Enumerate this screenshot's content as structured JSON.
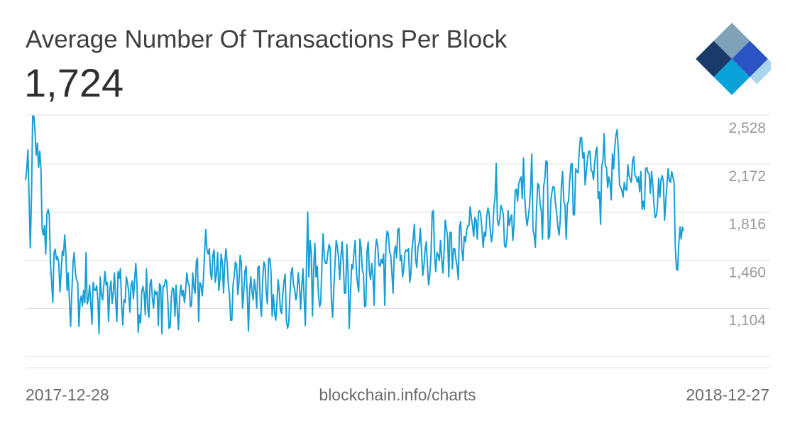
{
  "header": {
    "title": "Average Number Of Transactions Per Block",
    "current_value": "1,724"
  },
  "footer": {
    "start_date": "2017-12-28",
    "source": "blockchain.info/charts",
    "end_date": "2018-12-27"
  },
  "logo": {
    "colors": [
      "#1a3a6b",
      "#7fa2b8",
      "#2a53c4",
      "#08a2d8",
      "#a9d6ec"
    ]
  },
  "colors": {
    "line": "#169fd5",
    "grid": "#e0e0e0",
    "tick_text": "#9a9a9a"
  },
  "chart_data": {
    "type": "line",
    "title": "Average Number Of Transactions Per Block",
    "x_start": "2017-12-28",
    "x_end": "2018-12-27",
    "y_ticks": [
      "2,528",
      "2,172",
      "1,816",
      "1,460",
      "1,104"
    ],
    "ylim": [
      748,
      2618
    ],
    "grid": true,
    "series": [
      {
        "values": [
          2135,
          2215,
          2360,
          2000,
          1635,
          2010,
          2610,
          2610,
          2490,
          2320,
          2410,
          2230,
          2350,
          2210,
          1770,
          1730,
          1800,
          1590,
          1885,
          1920,
          1880,
          1520,
          1380,
          1230,
          1600,
          1625,
          1550,
          1570,
          1525,
          1310,
          1460,
          1610,
          1580,
          1730,
          1600,
          1320,
          1450,
          1250,
          1055,
          1300,
          1520,
          1600,
          1455,
          1400,
          1380,
          1055,
          1240,
          1280,
          1205,
          1320,
          1230,
          1600,
          1220,
          1255,
          1360,
          1230,
          1070,
          1380,
          1325,
          1320,
          1355,
          1250,
          1000,
          1420,
          1290,
          1250,
          1355,
          1460,
          1360,
          1380,
          1090,
          1320,
          1390,
          1225,
          1310,
          1450,
          1250,
          1090,
          1460,
          1410,
          1480,
          1220,
          1065,
          1250,
          1230,
          1420,
          1380,
          1310,
          1160,
          1360,
          1390,
          1260,
          1400,
          1520,
          1360,
          1010,
          1140,
          1080,
          1310,
          1350,
          1300,
          1140,
          1480,
          1200,
          1120,
          1370,
          1400,
          1260,
          1190,
          1320,
          1290,
          1310,
          1060,
          1370,
          1350,
          1000,
          1355,
          1350,
          1400,
          1390,
          1240,
          1040,
          1050,
          1280,
          1340,
          1330,
          1130,
          1360,
          1180,
          1030,
          1270,
          1360,
          1280,
          1320,
          1230,
          1320,
          1450,
          1380,
          1360,
          1200,
          1210,
          1450,
          1340,
          1300,
          1530,
          1560,
          1090,
          1380,
          1360,
          1280,
          1400,
          1600,
          1770,
          1620,
          1590,
          1630,
          1450,
          1400,
          1580,
          1620,
          1380,
          1440,
          1600,
          1320,
          1410,
          1590,
          1520,
          1300,
          1520,
          1630,
          1530,
          1370,
          1290,
          1100,
          1100,
          1360,
          1430,
          1530,
          1510,
          1290,
          1380,
          1580,
          1520,
          1190,
          1300,
          1460,
          1500,
          1290,
          1020,
          1320,
          1420,
          1310,
          1250,
          1400,
          1320,
          1190,
          1490,
          1500,
          1230,
          1130,
          1400,
          1530,
          1510,
          1300,
          1220,
          1550,
          1560,
          1460,
          1130,
          1290,
          1160,
          1100,
          1220,
          1400,
          1320,
          1170,
          1150,
          1300,
          1390,
          1440,
          1100,
          1040,
          1080,
          1290,
          1450,
          1490,
          1360,
          1330,
          1250,
          1300,
          1450,
          1360,
          1180,
          1350,
          1480,
          1260,
          1060,
          1520,
          1900,
          1420,
          1690,
          1600,
          1130,
          1480,
          1670,
          1420,
          1500,
          1300,
          1200,
          1230,
          1520,
          1740,
          1560,
          1520,
          1520,
          1600,
          1660,
          1630,
          1240,
          1120,
          1340,
          1520,
          1690,
          1650,
          1560,
          1400,
          1570,
          1680,
          1530,
          1300,
          1300,
          1660,
          1460,
          1040,
          1280,
          1510,
          1480,
          1600,
          1690,
          1470,
          1370,
          1310,
          1700,
          1640,
          1480,
          1440,
          1200,
          1210,
          1610,
          1680,
          1460,
          1400,
          1520,
          1430,
          1210,
          1610,
          1700,
          1650,
          1510,
          1500,
          1550,
          1520,
          1590,
          1210,
          1670,
          1760,
          1740,
          1610,
          1580,
          1450,
          1300,
          1600,
          1650,
          1560,
          1770,
          1780,
          1540,
          1580,
          1420,
          1480,
          1600,
          1620,
          1610,
          1630,
          1380,
          1440,
          1630,
          1710,
          1810,
          1550,
          1490,
          1640,
          1670,
          1780,
          1610,
          1430,
          1500,
          1620,
          1680,
          1500,
          1360,
          1440,
          1590,
          1900,
          1910,
          1580,
          1460,
          1600,
          1580,
          1540,
          1690,
          1560,
          1450,
          1600,
          1840,
          1780,
          1710,
          1420,
          1750,
          1750,
          1480,
          1630,
          1630,
          1550,
          1500,
          1400,
          1790,
          1830,
          1620,
          1540,
          1720,
          1680,
          1760,
          1800,
          1800,
          1940,
          1860,
          1800,
          1720,
          1860,
          1840,
          1700,
          1900,
          1910,
          1880,
          1760,
          1640,
          1750,
          1720,
          1870,
          1930,
          1890,
          1760,
          1680,
          1750,
          1930,
          2010,
          2260,
          1840,
          1800,
          1850,
          1950,
          1920,
          1880,
          1650,
          1640,
          1700,
          1910,
          1800,
          1850,
          1880,
          1690,
          1800,
          2060,
          2070,
          1980,
          2110,
          2140,
          2160,
          2000,
          2300,
          2020,
          1880,
          1800,
          1860,
          1940,
          2080,
          2330,
          1770,
          1730,
          1640,
          1920,
          2110,
          2100,
          1960,
          1910,
          1700,
          2090,
          2150,
          2280,
          2270,
          1700,
          1720,
          1980,
          2050,
          2090,
          2080,
          1960,
          1890,
          1790,
          1730,
          1840,
          2100,
          2200,
          1980,
          1950,
          1700,
          1960,
          1980,
          2140,
          2250,
          2260,
          1880,
          1880,
          2220,
          2200,
          2190,
          2350,
          2450,
          2450,
          2300,
          2340,
          2100,
          2200,
          2300,
          2350,
          2350,
          2210,
          2200,
          2140,
          2260,
          2350,
          2380,
          2000,
          2050,
          1810,
          2240,
          2280,
          2480,
          2240,
          2230,
          2080,
          2160,
          2120,
          1990,
          2330,
          2220,
          2380,
          2470,
          2510,
          2350,
          2100,
          2080,
          2060,
          2010,
          2120,
          2070,
          2060,
          2250,
          2170,
          2140,
          2120,
          2280,
          2310,
          2170,
          2160,
          2120,
          2160,
          2050,
          2200,
          1920,
          1980,
          1920,
          2220,
          2230,
          2190,
          2180,
          2040,
          2200,
          2110,
          1960,
          1860,
          1870,
          1950,
          2150,
          2010,
          2140,
          2170,
          2120,
          1840,
          1980,
          2100,
          2220,
          2130,
          2120,
          2200,
          2160,
          2120,
          1650,
          1480,
          1470,
          1670,
          1790,
          1700,
          1790,
          1760
        ]
      }
    ]
  }
}
